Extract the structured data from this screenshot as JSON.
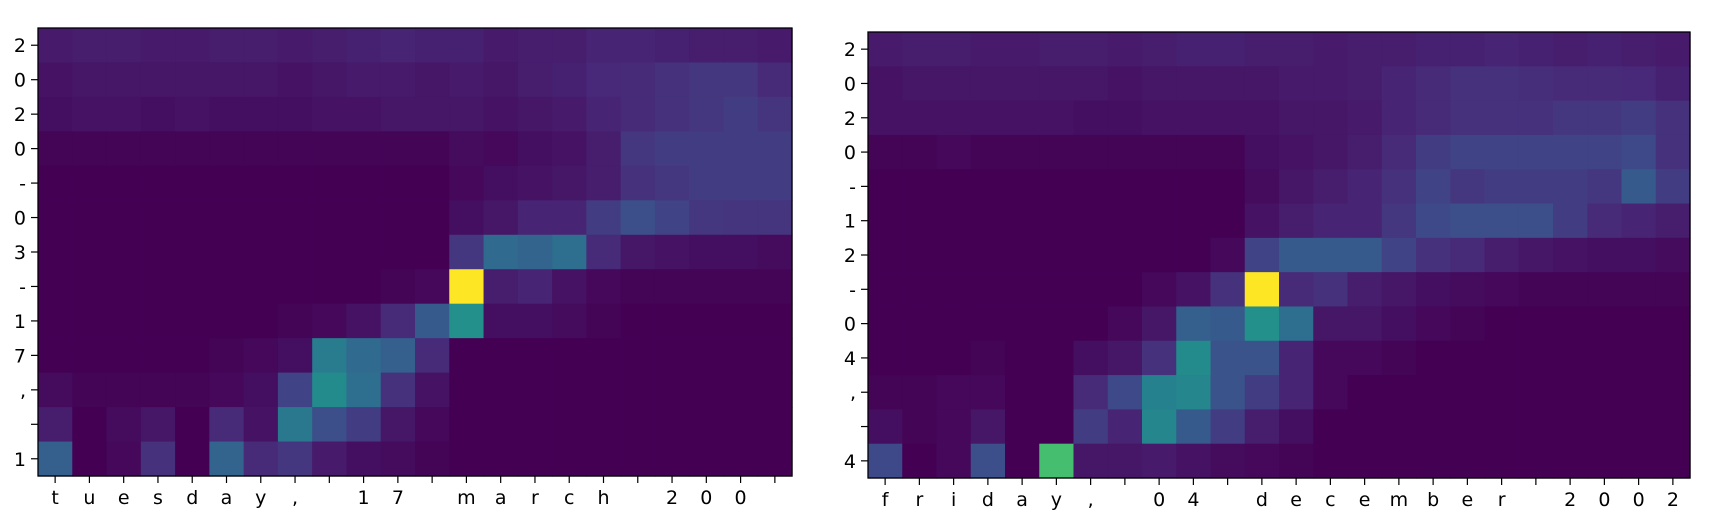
{
  "chart_data": [
    {
      "type": "heatmap",
      "title": "",
      "xlabel": "",
      "ylabel": "",
      "x_tick_labels": [
        "t",
        "u",
        "e",
        "s",
        "d",
        "a",
        "y",
        ",",
        "",
        "1",
        "7",
        "",
        "m",
        "a",
        "r",
        "c",
        "h",
        "",
        "2",
        "0",
        "0",
        ""
      ],
      "y_tick_labels": [
        "2",
        "0",
        "2",
        "0",
        "-",
        "0",
        "3",
        "-",
        "1",
        "7",
        ",",
        "",
        "1"
      ],
      "colormap": "viridis",
      "value_range": [
        0,
        1
      ],
      "values": [
        [
          0.07,
          0.08,
          0.08,
          0.07,
          0.07,
          0.08,
          0.08,
          0.07,
          0.08,
          0.09,
          0.1,
          0.09,
          0.09,
          0.07,
          0.08,
          0.08,
          0.1,
          0.1,
          0.09,
          0.08,
          0.08,
          0.07
        ],
        [
          0.05,
          0.06,
          0.06,
          0.06,
          0.06,
          0.06,
          0.06,
          0.05,
          0.06,
          0.07,
          0.07,
          0.06,
          0.07,
          0.06,
          0.08,
          0.09,
          0.11,
          0.12,
          0.14,
          0.16,
          0.16,
          0.12
        ],
        [
          0.04,
          0.05,
          0.05,
          0.04,
          0.05,
          0.04,
          0.04,
          0.04,
          0.05,
          0.05,
          0.06,
          0.06,
          0.06,
          0.05,
          0.06,
          0.07,
          0.1,
          0.12,
          0.14,
          0.16,
          0.18,
          0.15
        ],
        [
          0.01,
          0.01,
          0.01,
          0.01,
          0.01,
          0.01,
          0.01,
          0.01,
          0.01,
          0.01,
          0.01,
          0.01,
          0.03,
          0.02,
          0.04,
          0.05,
          0.08,
          0.16,
          0.18,
          0.18,
          0.18,
          0.18
        ],
        [
          0.0,
          0.0,
          0.0,
          0.0,
          0.0,
          0.0,
          0.0,
          0.0,
          0.0,
          0.0,
          0.0,
          0.0,
          0.02,
          0.04,
          0.05,
          0.06,
          0.08,
          0.14,
          0.16,
          0.18,
          0.18,
          0.18
        ],
        [
          0.0,
          0.0,
          0.0,
          0.0,
          0.0,
          0.0,
          0.0,
          0.0,
          0.0,
          0.0,
          0.0,
          0.0,
          0.04,
          0.06,
          0.1,
          0.1,
          0.18,
          0.24,
          0.2,
          0.16,
          0.15,
          0.15
        ],
        [
          0.0,
          0.0,
          0.0,
          0.0,
          0.0,
          0.0,
          0.0,
          0.0,
          0.0,
          0.0,
          0.0,
          0.0,
          0.16,
          0.34,
          0.32,
          0.36,
          0.12,
          0.06,
          0.05,
          0.04,
          0.04,
          0.03
        ],
        [
          0.0,
          0.0,
          0.0,
          0.0,
          0.0,
          0.0,
          0.0,
          0.0,
          0.0,
          0.0,
          0.01,
          0.02,
          1.0,
          0.08,
          0.1,
          0.05,
          0.02,
          0.01,
          0.01,
          0.01,
          0.01,
          0.01
        ],
        [
          0.0,
          0.0,
          0.0,
          0.0,
          0.0,
          0.0,
          0.0,
          0.01,
          0.02,
          0.05,
          0.12,
          0.28,
          0.5,
          0.04,
          0.04,
          0.03,
          0.01,
          0.0,
          0.0,
          0.0,
          0.0,
          0.0
        ],
        [
          0.0,
          0.0,
          0.0,
          0.0,
          0.0,
          0.01,
          0.02,
          0.04,
          0.42,
          0.34,
          0.3,
          0.12,
          0.0,
          0.0,
          0.0,
          0.0,
          0.0,
          0.0,
          0.0,
          0.0,
          0.0,
          0.0
        ],
        [
          0.03,
          0.01,
          0.01,
          0.01,
          0.01,
          0.02,
          0.04,
          0.2,
          0.48,
          0.36,
          0.14,
          0.05,
          0.0,
          0.0,
          0.0,
          0.0,
          0.0,
          0.0,
          0.0,
          0.0,
          0.0,
          0.0
        ],
        [
          0.08,
          0.0,
          0.03,
          0.06,
          0.0,
          0.12,
          0.05,
          0.4,
          0.24,
          0.18,
          0.06,
          0.02,
          0.0,
          0.0,
          0.0,
          0.0,
          0.0,
          0.0,
          0.0,
          0.0,
          0.0,
          0.0
        ],
        [
          0.3,
          0.0,
          0.02,
          0.14,
          0.0,
          0.32,
          0.12,
          0.16,
          0.07,
          0.04,
          0.03,
          0.01,
          0.0,
          0.0,
          0.0,
          0.0,
          0.0,
          0.0,
          0.0,
          0.0,
          0.0,
          0.0
        ]
      ]
    },
    {
      "type": "heatmap",
      "title": "",
      "xlabel": "",
      "ylabel": "",
      "x_tick_labels": [
        "f",
        "r",
        "i",
        "d",
        "a",
        "y",
        ",",
        "",
        "0",
        "4",
        "",
        "d",
        "e",
        "c",
        "e",
        "m",
        "b",
        "e",
        "r",
        "",
        "2",
        "0",
        "0",
        "2"
      ],
      "y_tick_labels": [
        "2",
        "0",
        "2",
        "0",
        "-",
        "1",
        "2",
        "-",
        "0",
        "4",
        ",",
        "",
        "4"
      ],
      "colormap": "viridis",
      "value_range": [
        0,
        1
      ],
      "values": [
        [
          0.07,
          0.08,
          0.08,
          0.07,
          0.07,
          0.08,
          0.08,
          0.07,
          0.08,
          0.09,
          0.09,
          0.08,
          0.08,
          0.07,
          0.08,
          0.08,
          0.09,
          0.09,
          0.1,
          0.09,
          0.08,
          0.09,
          0.08,
          0.07
        ],
        [
          0.05,
          0.06,
          0.06,
          0.06,
          0.06,
          0.06,
          0.06,
          0.05,
          0.06,
          0.06,
          0.06,
          0.06,
          0.07,
          0.07,
          0.08,
          0.1,
          0.12,
          0.14,
          0.14,
          0.13,
          0.12,
          0.12,
          0.11,
          0.09
        ],
        [
          0.05,
          0.05,
          0.05,
          0.05,
          0.05,
          0.05,
          0.04,
          0.04,
          0.05,
          0.05,
          0.05,
          0.05,
          0.06,
          0.06,
          0.07,
          0.1,
          0.12,
          0.14,
          0.14,
          0.14,
          0.16,
          0.16,
          0.18,
          0.14
        ],
        [
          0.01,
          0.01,
          0.02,
          0.01,
          0.01,
          0.01,
          0.01,
          0.01,
          0.01,
          0.01,
          0.01,
          0.04,
          0.05,
          0.06,
          0.08,
          0.12,
          0.18,
          0.2,
          0.2,
          0.2,
          0.2,
          0.2,
          0.22,
          0.14
        ],
        [
          0.0,
          0.0,
          0.0,
          0.0,
          0.0,
          0.0,
          0.0,
          0.0,
          0.0,
          0.0,
          0.0,
          0.03,
          0.06,
          0.08,
          0.1,
          0.14,
          0.2,
          0.16,
          0.18,
          0.18,
          0.18,
          0.16,
          0.28,
          0.18
        ],
        [
          0.0,
          0.0,
          0.0,
          0.0,
          0.0,
          0.0,
          0.0,
          0.0,
          0.0,
          0.0,
          0.0,
          0.05,
          0.08,
          0.1,
          0.1,
          0.16,
          0.22,
          0.24,
          0.24,
          0.24,
          0.18,
          0.12,
          0.1,
          0.08
        ],
        [
          0.0,
          0.0,
          0.0,
          0.0,
          0.0,
          0.0,
          0.0,
          0.0,
          0.0,
          0.0,
          0.02,
          0.2,
          0.28,
          0.28,
          0.28,
          0.2,
          0.14,
          0.12,
          0.08,
          0.06,
          0.05,
          0.04,
          0.04,
          0.03
        ],
        [
          0.0,
          0.0,
          0.0,
          0.0,
          0.0,
          0.0,
          0.0,
          0.0,
          0.02,
          0.05,
          0.14,
          1.0,
          0.12,
          0.14,
          0.08,
          0.06,
          0.04,
          0.03,
          0.02,
          0.01,
          0.01,
          0.01,
          0.01,
          0.01
        ],
        [
          0.0,
          0.0,
          0.0,
          0.0,
          0.0,
          0.0,
          0.0,
          0.02,
          0.06,
          0.3,
          0.28,
          0.5,
          0.36,
          0.06,
          0.06,
          0.04,
          0.02,
          0.01,
          0.0,
          0.0,
          0.0,
          0.0,
          0.0,
          0.0
        ],
        [
          0.0,
          0.0,
          0.0,
          0.01,
          0.0,
          0.0,
          0.04,
          0.06,
          0.14,
          0.48,
          0.26,
          0.26,
          0.1,
          0.02,
          0.02,
          0.01,
          0.0,
          0.0,
          0.0,
          0.0,
          0.0,
          0.0,
          0.0,
          0.0
        ],
        [
          0.01,
          0.01,
          0.02,
          0.02,
          0.0,
          0.0,
          0.12,
          0.22,
          0.44,
          0.46,
          0.26,
          0.18,
          0.1,
          0.02,
          0.0,
          0.0,
          0.0,
          0.0,
          0.0,
          0.0,
          0.0,
          0.0,
          0.0,
          0.0
        ],
        [
          0.04,
          0.01,
          0.02,
          0.06,
          0.0,
          0.0,
          0.18,
          0.1,
          0.46,
          0.28,
          0.18,
          0.08,
          0.04,
          0.0,
          0.0,
          0.0,
          0.0,
          0.0,
          0.0,
          0.0,
          0.0,
          0.0,
          0.0,
          0.0
        ],
        [
          0.22,
          0.0,
          0.02,
          0.24,
          0.0,
          0.7,
          0.06,
          0.06,
          0.07,
          0.05,
          0.03,
          0.02,
          0.01,
          0.0,
          0.0,
          0.0,
          0.0,
          0.0,
          0.0,
          0.0,
          0.0,
          0.0,
          0.0,
          0.0
        ]
      ]
    }
  ]
}
